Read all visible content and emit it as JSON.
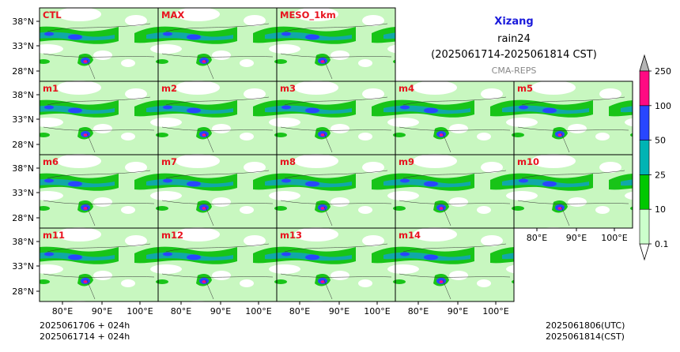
{
  "header": {
    "region": "Xizang",
    "variable": "rain24",
    "period": "(2025061714-2025061814 CST)",
    "system": "CMA-REPS"
  },
  "panels": [
    {
      "label": "CTL",
      "row": 0,
      "col": 0
    },
    {
      "label": "MAX",
      "row": 0,
      "col": 1
    },
    {
      "label": "MESO_1km",
      "row": 0,
      "col": 2
    },
    {
      "label": "m1",
      "row": 1,
      "col": 0
    },
    {
      "label": "m2",
      "row": 1,
      "col": 1
    },
    {
      "label": "m3",
      "row": 1,
      "col": 2
    },
    {
      "label": "m4",
      "row": 1,
      "col": 3
    },
    {
      "label": "m5",
      "row": 1,
      "col": 4
    },
    {
      "label": "m6",
      "row": 2,
      "col": 0
    },
    {
      "label": "m7",
      "row": 2,
      "col": 1
    },
    {
      "label": "m8",
      "row": 2,
      "col": 2
    },
    {
      "label": "m9",
      "row": 2,
      "col": 3
    },
    {
      "label": "m10",
      "row": 2,
      "col": 4
    },
    {
      "label": "m11",
      "row": 3,
      "col": 0
    },
    {
      "label": "m12",
      "row": 3,
      "col": 1
    },
    {
      "label": "m13",
      "row": 3,
      "col": 2
    },
    {
      "label": "m14",
      "row": 3,
      "col": 3
    }
  ],
  "axes": {
    "lat_ticks": [
      "38°N",
      "33°N",
      "28°N"
    ],
    "lon_ticks": [
      "80°E",
      "90°E",
      "100°E"
    ]
  },
  "colorbar": {
    "levels": [
      "0.1",
      "10",
      "25",
      "50",
      "100",
      "250"
    ],
    "colors": [
      "#ccffcc",
      "#00c800",
      "#00b4b4",
      "#2846ff",
      "#ff0a82"
    ]
  },
  "footer": {
    "init_utc": "2025061706  +  024h",
    "init_cst": "2025061714  +  024h",
    "valid_utc": "2025061806(UTC)",
    "valid_cst": "2025061814(CST)"
  }
}
